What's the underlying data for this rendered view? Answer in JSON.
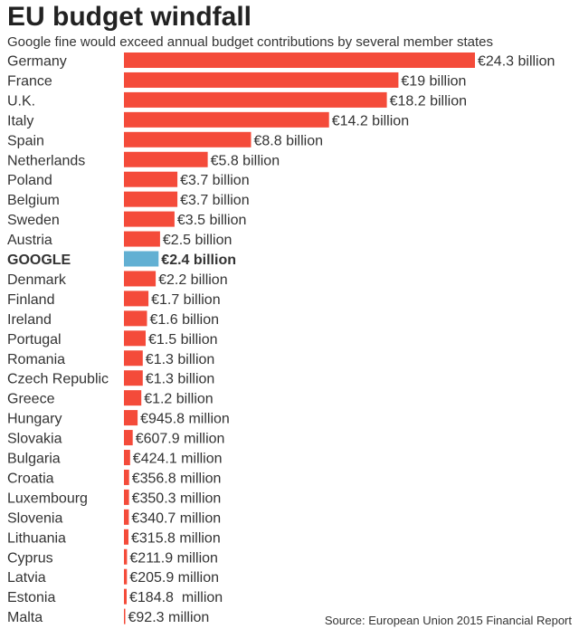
{
  "chart_data": {
    "type": "bar",
    "orientation": "horizontal",
    "title": "EU budget windfall",
    "subtitle": "Google fine would exceed annual budget contributions by several member states",
    "source": "Source: European Union 2015 Financial Report",
    "unit": "€ billion",
    "highlight_category": "GOOGLE",
    "colors": {
      "bar": "#f44b3a",
      "highlight": "#62b0d3",
      "text": "#333333",
      "title": "#222222"
    },
    "categories": [
      "Germany",
      "France",
      "U.K.",
      "Italy",
      "Spain",
      "Netherlands",
      "Poland",
      "Belgium",
      "Sweden",
      "Austria",
      "GOOGLE",
      "Denmark",
      "Finland",
      "Ireland",
      "Portugal",
      "Romania",
      "Czech Republic",
      "Greece",
      "Hungary",
      "Slovakia",
      "Bulgaria",
      "Croatia",
      "Luxembourg",
      "Slovenia",
      "Lithuania",
      "Cyprus",
      "Latvia",
      "Estonia",
      "Malta"
    ],
    "values": [
      24.3,
      19,
      18.2,
      14.2,
      8.8,
      5.8,
      3.7,
      3.7,
      3.5,
      2.5,
      2.4,
      2.2,
      1.7,
      1.6,
      1.5,
      1.3,
      1.3,
      1.2,
      0.9458,
      0.6079,
      0.4241,
      0.3568,
      0.3503,
      0.3407,
      0.3158,
      0.2119,
      0.2059,
      0.1848,
      0.0923
    ],
    "labels": [
      "€24.3 billion",
      "€19 billion",
      "€18.2 billion",
      "€14.2 billion",
      "€8.8 billion",
      "€5.8 billion",
      "€3.7 billion",
      "€3.7 billion",
      "€3.5 billion",
      "€2.5 billion",
      "€2.4 billion",
      "€2.2 billion",
      "€1.7 billion",
      "€1.6 billion",
      "€1.5 billion",
      "€1.3 billion",
      "€1.3 billion",
      "€1.2 billion",
      "€945.8 million",
      "€607.9 million",
      "€424.1 million",
      "€356.8 million",
      "€350.3 million",
      "€340.7 million",
      "€315.8 million",
      "€211.9 million",
      "€205.9 million",
      "€184.8  million",
      "€92.3 million"
    ]
  }
}
